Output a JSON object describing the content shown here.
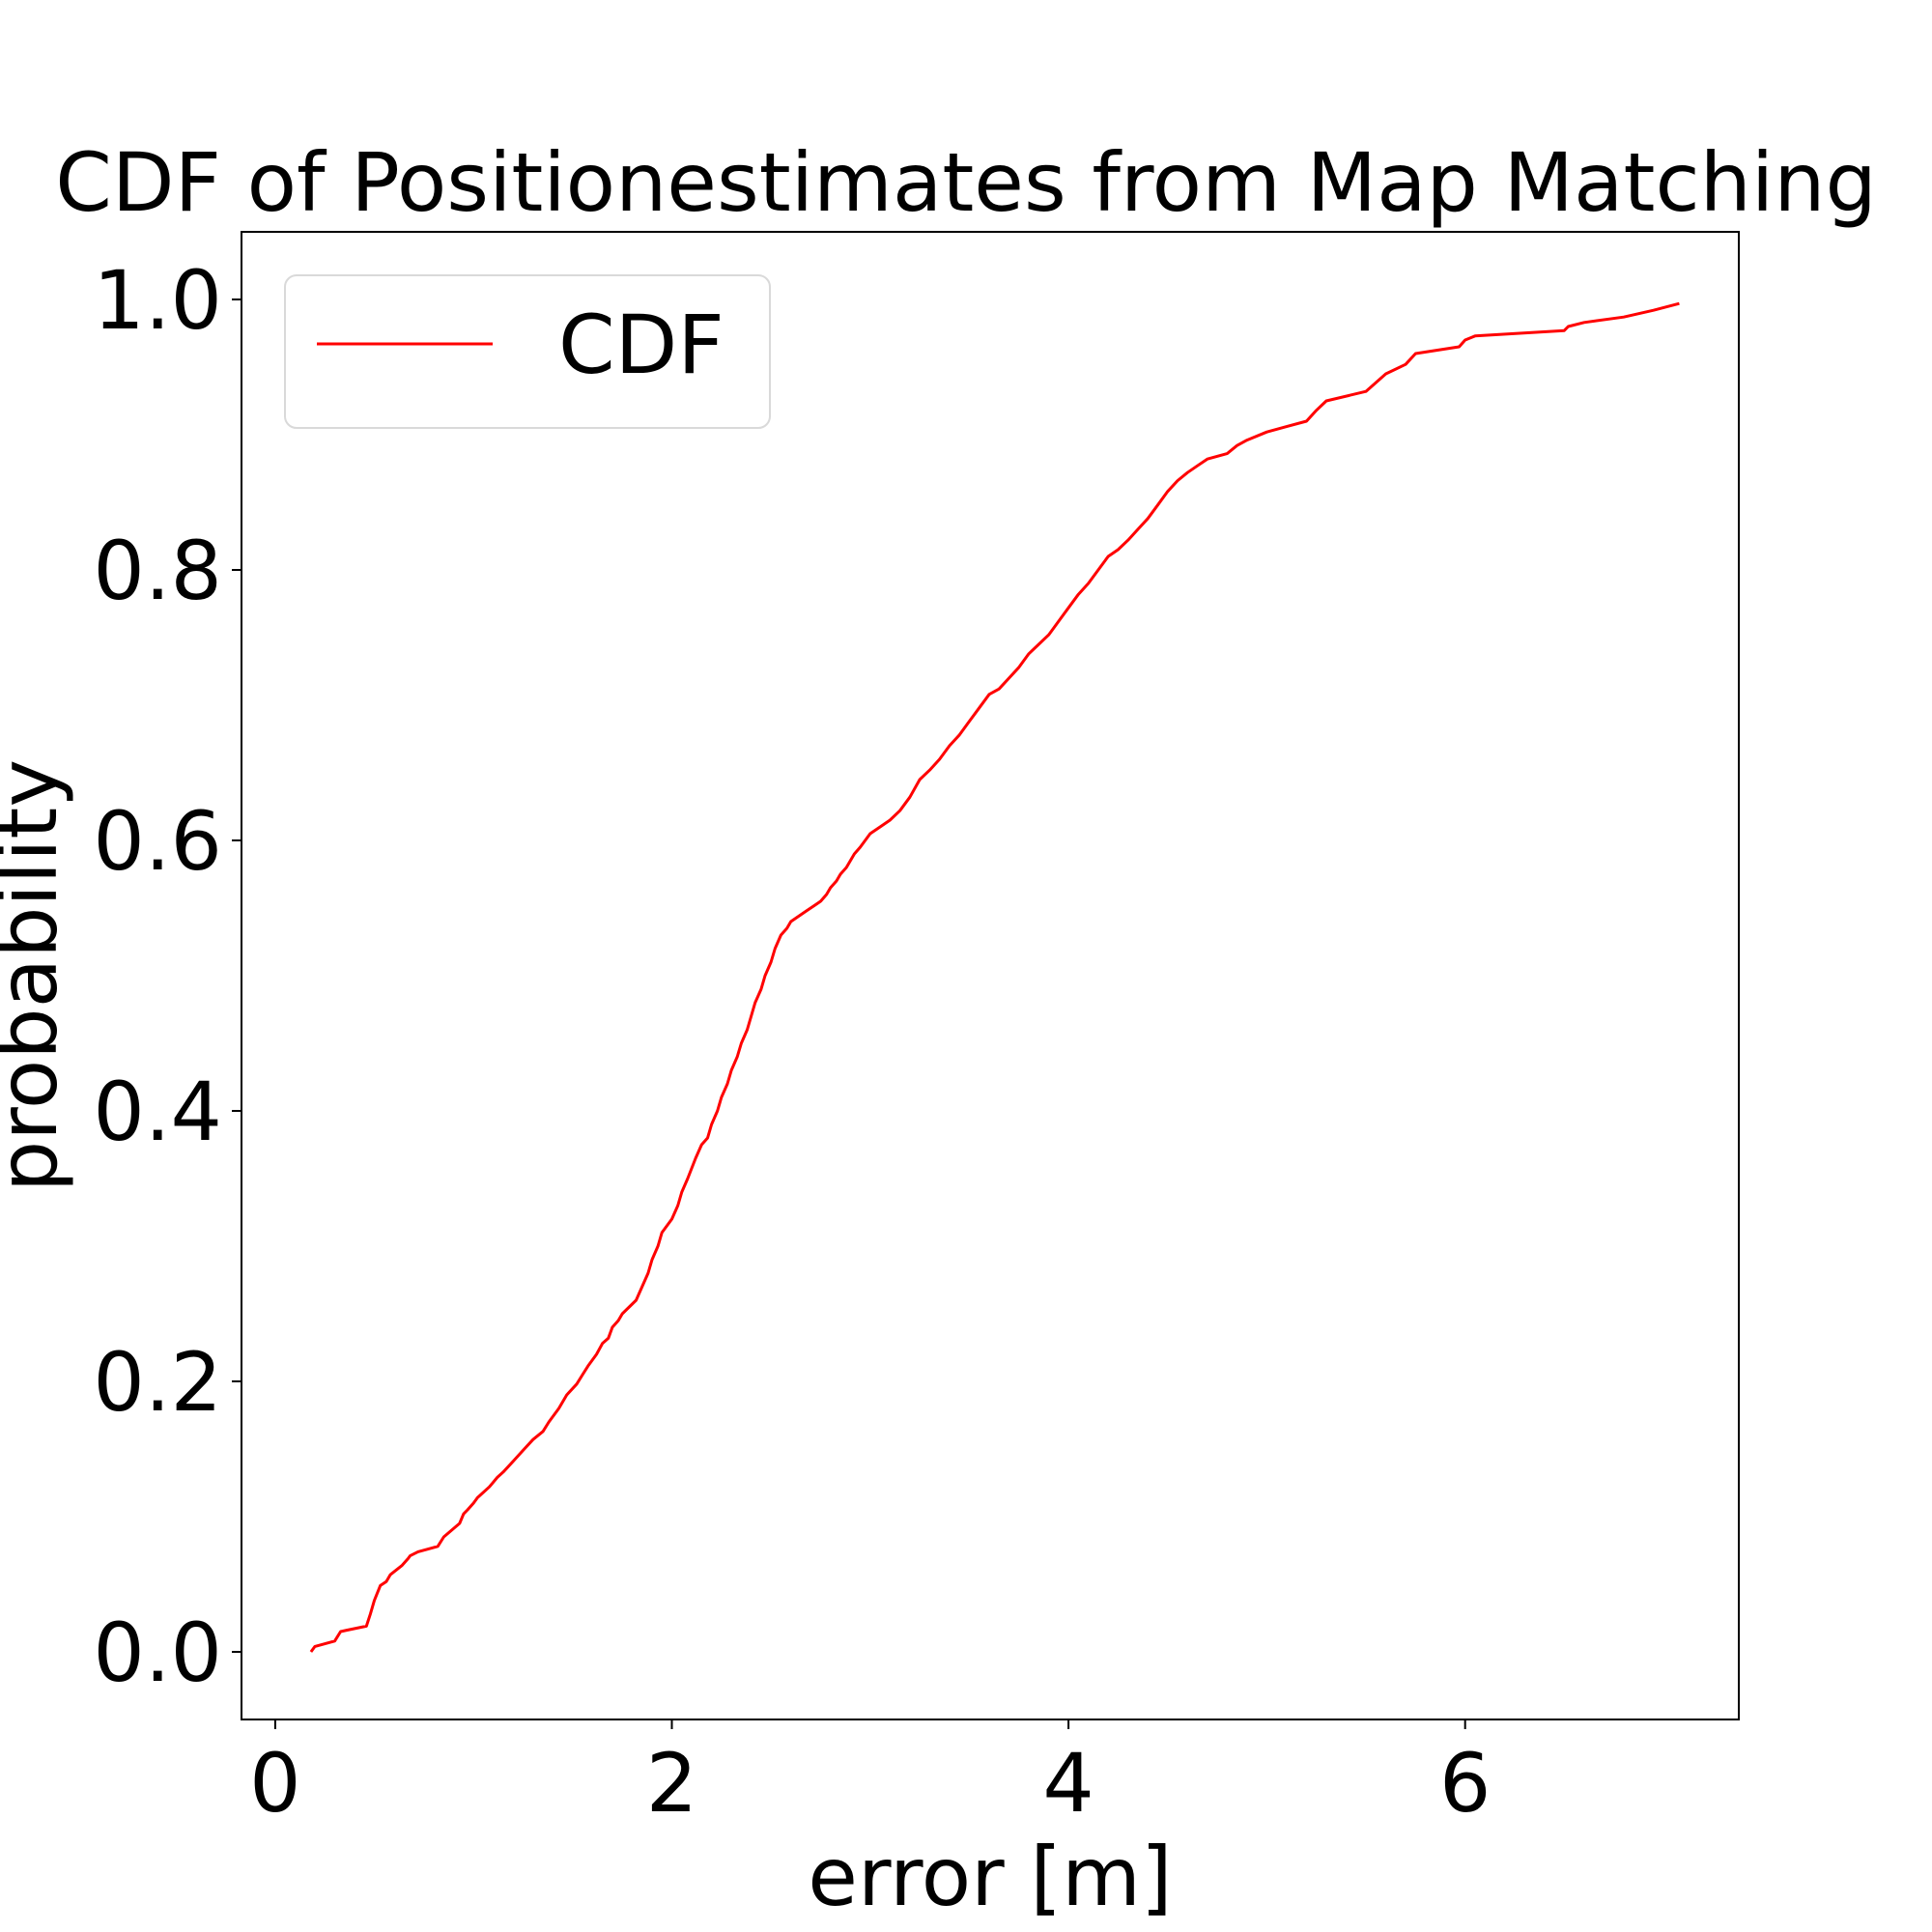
{
  "chart_data": {
    "type": "line",
    "title": "CDF of Positionestimates from Map Matching",
    "xlabel": "error [m]",
    "ylabel": "probability",
    "xlim": [
      -0.17,
      7.38
    ],
    "ylim": [
      -0.05,
      1.05
    ],
    "xticks": [
      0,
      2,
      4,
      6
    ],
    "xtick_labels": [
      "0",
      "2",
      "4",
      "6"
    ],
    "yticks": [
      0.0,
      0.2,
      0.4,
      0.6,
      0.8,
      1.0
    ],
    "ytick_labels": [
      "0.0",
      "0.2",
      "0.4",
      "0.6",
      "0.8",
      "1.0"
    ],
    "grid": false,
    "legend": {
      "position": "upper-left",
      "entries": [
        "CDF"
      ]
    },
    "series": [
      {
        "name": "CDF",
        "color": "#ff0000",
        "x": [
          0.18,
          0.2,
          0.3,
          0.33,
          0.36,
          0.46,
          0.48,
          0.5,
          0.53,
          0.56,
          0.58,
          0.64,
          0.67,
          0.68,
          0.72,
          0.82,
          0.85,
          0.93,
          0.95,
          0.97,
          1.0,
          1.02,
          1.05,
          1.08,
          1.12,
          1.15,
          1.2,
          1.25,
          1.3,
          1.35,
          1.38,
          1.43,
          1.47,
          1.52,
          1.55,
          1.58,
          1.62,
          1.65,
          1.68,
          1.7,
          1.73,
          1.75,
          1.82,
          1.85,
          1.88,
          1.9,
          1.93,
          1.95,
          2.0,
          2.03,
          2.05,
          2.08,
          2.12,
          2.15,
          2.18,
          2.2,
          2.23,
          2.25,
          2.28,
          2.3,
          2.33,
          2.35,
          2.38,
          2.4,
          2.42,
          2.45,
          2.47,
          2.5,
          2.52,
          2.55,
          2.58,
          2.6,
          2.65,
          2.68,
          2.72,
          2.75,
          2.78,
          2.8,
          2.83,
          2.85,
          2.88,
          2.92,
          2.95,
          3.0,
          3.05,
          3.1,
          3.15,
          3.2,
          3.25,
          3.3,
          3.35,
          3.4,
          3.45,
          3.5,
          3.55,
          3.6,
          3.65,
          3.7,
          3.75,
          3.8,
          3.85,
          3.9,
          3.95,
          4.0,
          4.05,
          4.1,
          4.15,
          4.2,
          4.25,
          4.3,
          4.35,
          4.4,
          4.45,
          4.5,
          4.55,
          4.6,
          4.65,
          4.7,
          4.8,
          4.85,
          4.9,
          5.0,
          5.1,
          5.2,
          5.25,
          5.3,
          5.5,
          5.6,
          5.7,
          5.75,
          5.97,
          6.0,
          6.05,
          6.5,
          6.52,
          6.6,
          6.8,
          6.95,
          7.08
        ],
        "y": [
          0.0,
          0.004,
          0.008,
          0.015,
          0.016,
          0.019,
          0.028,
          0.038,
          0.049,
          0.052,
          0.057,
          0.064,
          0.069,
          0.071,
          0.074,
          0.078,
          0.085,
          0.095,
          0.102,
          0.105,
          0.11,
          0.114,
          0.118,
          0.122,
          0.129,
          0.133,
          0.141,
          0.149,
          0.157,
          0.163,
          0.17,
          0.18,
          0.19,
          0.198,
          0.205,
          0.212,
          0.22,
          0.228,
          0.232,
          0.24,
          0.245,
          0.25,
          0.26,
          0.27,
          0.28,
          0.29,
          0.3,
          0.31,
          0.32,
          0.33,
          0.34,
          0.35,
          0.365,
          0.375,
          0.38,
          0.39,
          0.4,
          0.41,
          0.42,
          0.43,
          0.44,
          0.45,
          0.46,
          0.47,
          0.48,
          0.49,
          0.5,
          0.51,
          0.52,
          0.53,
          0.535,
          0.54,
          0.545,
          0.548,
          0.552,
          0.555,
          0.56,
          0.565,
          0.57,
          0.575,
          0.58,
          0.59,
          0.595,
          0.605,
          0.61,
          0.615,
          0.622,
          0.632,
          0.645,
          0.652,
          0.66,
          0.67,
          0.678,
          0.688,
          0.698,
          0.708,
          0.712,
          0.72,
          0.728,
          0.738,
          0.745,
          0.752,
          0.762,
          0.772,
          0.782,
          0.79,
          0.8,
          0.81,
          0.815,
          0.822,
          0.83,
          0.838,
          0.848,
          0.858,
          0.866,
          0.872,
          0.877,
          0.882,
          0.886,
          0.892,
          0.896,
          0.902,
          0.906,
          0.91,
          0.918,
          0.925,
          0.932,
          0.945,
          0.952,
          0.96,
          0.965,
          0.97,
          0.973,
          0.977,
          0.98,
          0.983,
          0.987,
          0.992,
          0.997
        ]
      }
    ]
  }
}
